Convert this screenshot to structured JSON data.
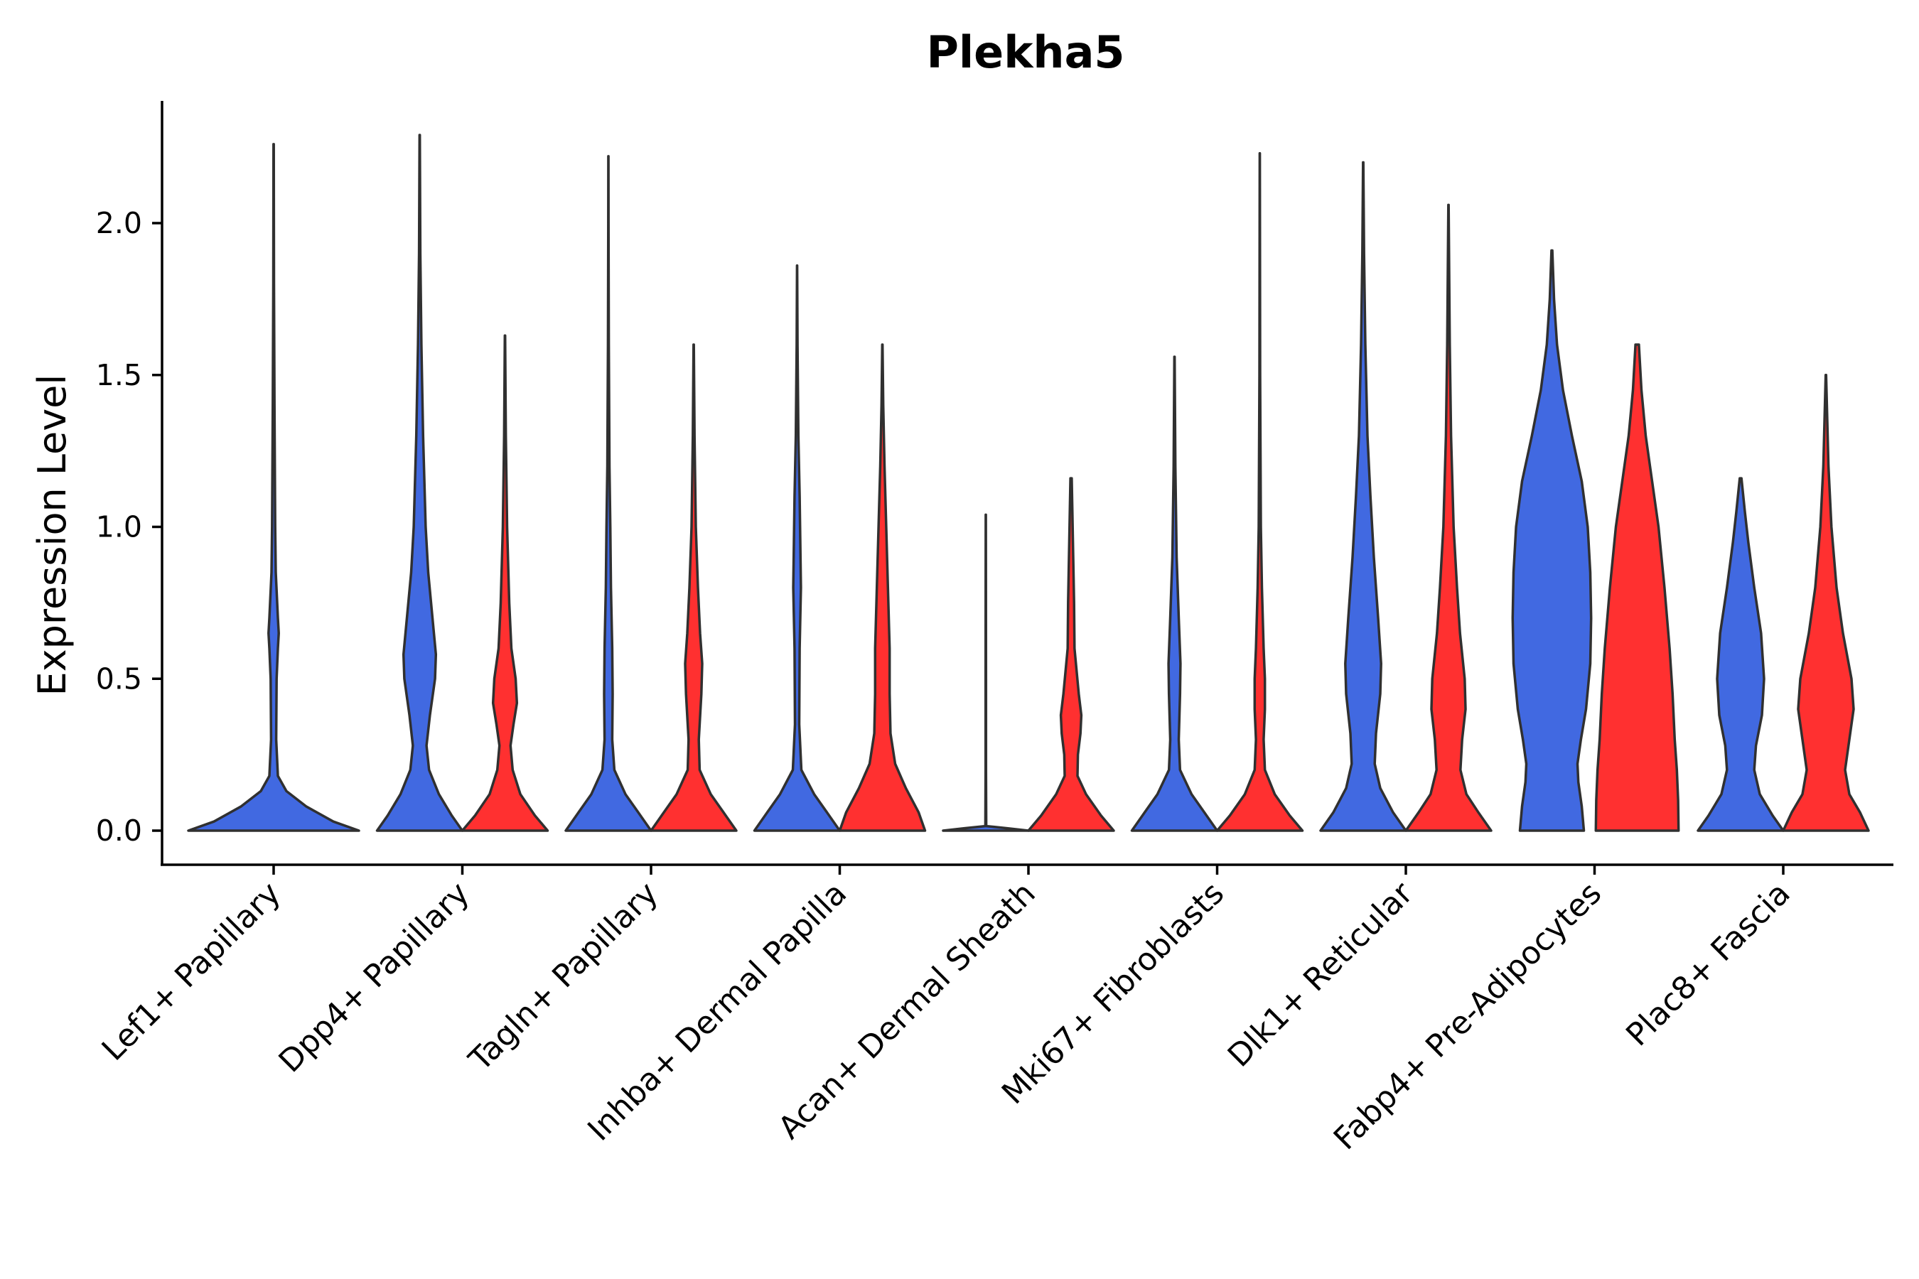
{
  "chart_data": {
    "type": "violin",
    "title": "Plekha5",
    "xlabel": "",
    "ylabel": "Expression Level",
    "ylim": [
      -0.11,
      2.4
    ],
    "yticks": [
      0.0,
      0.5,
      1.0,
      1.5,
      2.0
    ],
    "ytick_labels": [
      "0.0",
      "0.5",
      "1.0",
      "1.5",
      "2.0"
    ],
    "legend": "none",
    "grid": false,
    "groups": [
      {
        "name": "blue",
        "color": "#4169E1"
      },
      {
        "name": "red",
        "color": "#FF3030"
      }
    ],
    "categories": [
      "Lef1+ Papillary",
      "Dpp4+ Papillary",
      "Tagln+ Papillary",
      "Inhba+ Dermal Papilla",
      "Acan+ Dermal Sheath",
      "Mki67+ Fibroblasts",
      "Dlk1+ Reticular",
      "Fabp4+ Pre-Adipocytes",
      "Plac8+ Fascia"
    ],
    "violins": [
      {
        "category": "Lef1+ Papillary",
        "group": "blue",
        "max": 2.26,
        "profile": [
          [
            0,
            1.0
          ],
          [
            0.03,
            0.7
          ],
          [
            0.08,
            0.38
          ],
          [
            0.13,
            0.15
          ],
          [
            0.18,
            0.05
          ],
          [
            0.3,
            0.03
          ],
          [
            0.5,
            0.035
          ],
          [
            0.6,
            0.05
          ],
          [
            0.65,
            0.06
          ],
          [
            0.7,
            0.05
          ],
          [
            0.85,
            0.025
          ],
          [
            1.0,
            0.018
          ],
          [
            1.4,
            0.01
          ],
          [
            1.8,
            0.004
          ],
          [
            2.26,
            0.002
          ]
        ]
      },
      {
        "category": "Dpp4+ Papillary",
        "group": "blue",
        "max": 2.29,
        "profile": [
          [
            0,
            1.0
          ],
          [
            0.05,
            0.75
          ],
          [
            0.12,
            0.45
          ],
          [
            0.2,
            0.22
          ],
          [
            0.28,
            0.16
          ],
          [
            0.38,
            0.24
          ],
          [
            0.5,
            0.36
          ],
          [
            0.58,
            0.38
          ],
          [
            0.7,
            0.3
          ],
          [
            0.85,
            0.2
          ],
          [
            1.0,
            0.14
          ],
          [
            1.3,
            0.08
          ],
          [
            1.6,
            0.04
          ],
          [
            1.9,
            0.015
          ],
          [
            2.29,
            0.004
          ]
        ]
      },
      {
        "category": "Dpp4+ Papillary",
        "group": "red",
        "max": 1.63,
        "profile": [
          [
            0,
            1.0
          ],
          [
            0.05,
            0.7
          ],
          [
            0.12,
            0.36
          ],
          [
            0.2,
            0.18
          ],
          [
            0.28,
            0.13
          ],
          [
            0.35,
            0.2
          ],
          [
            0.42,
            0.28
          ],
          [
            0.5,
            0.25
          ],
          [
            0.6,
            0.15
          ],
          [
            0.75,
            0.1
          ],
          [
            1.0,
            0.05
          ],
          [
            1.3,
            0.02
          ],
          [
            1.63,
            0.003
          ]
        ]
      },
      {
        "category": "Tagln+ Papillary",
        "group": "blue",
        "max": 2.22,
        "profile": [
          [
            0,
            1.0
          ],
          [
            0.06,
            0.7
          ],
          [
            0.12,
            0.4
          ],
          [
            0.2,
            0.14
          ],
          [
            0.3,
            0.09
          ],
          [
            0.45,
            0.1
          ],
          [
            0.6,
            0.09
          ],
          [
            0.8,
            0.06
          ],
          [
            1.0,
            0.045
          ],
          [
            1.2,
            0.025
          ],
          [
            1.6,
            0.01
          ],
          [
            2.0,
            0.004
          ],
          [
            2.22,
            0.002
          ]
        ]
      },
      {
        "category": "Tagln+ Papillary",
        "group": "red",
        "max": 1.6,
        "profile": [
          [
            0,
            1.0
          ],
          [
            0.05,
            0.75
          ],
          [
            0.12,
            0.4
          ],
          [
            0.2,
            0.14
          ],
          [
            0.3,
            0.12
          ],
          [
            0.45,
            0.18
          ],
          [
            0.55,
            0.2
          ],
          [
            0.65,
            0.15
          ],
          [
            0.8,
            0.1
          ],
          [
            1.0,
            0.05
          ],
          [
            1.3,
            0.02
          ],
          [
            1.6,
            0.003
          ]
        ]
      },
      {
        "category": "Inhba+ Dermal Papilla",
        "group": "blue",
        "max": 1.86,
        "profile": [
          [
            0,
            1.0
          ],
          [
            0.06,
            0.7
          ],
          [
            0.12,
            0.4
          ],
          [
            0.2,
            0.1
          ],
          [
            0.35,
            0.05
          ],
          [
            0.6,
            0.06
          ],
          [
            0.8,
            0.09
          ],
          [
            0.9,
            0.08
          ],
          [
            1.1,
            0.06
          ],
          [
            1.3,
            0.03
          ],
          [
            1.6,
            0.01
          ],
          [
            1.86,
            0.002
          ]
        ]
      },
      {
        "category": "Inhba+ Dermal Papilla",
        "group": "red",
        "max": 1.6,
        "profile": [
          [
            0,
            1.0
          ],
          [
            0.06,
            0.85
          ],
          [
            0.14,
            0.55
          ],
          [
            0.22,
            0.3
          ],
          [
            0.32,
            0.19
          ],
          [
            0.45,
            0.17
          ],
          [
            0.6,
            0.17
          ],
          [
            0.8,
            0.13
          ],
          [
            1.0,
            0.09
          ],
          [
            1.2,
            0.05
          ],
          [
            1.4,
            0.02
          ],
          [
            1.6,
            0.003
          ]
        ]
      },
      {
        "category": "Acan+ Dermal Sheath",
        "group": "blue",
        "max": 1.04,
        "profile": [
          [
            0,
            1.0
          ],
          [
            0.008,
            0.5
          ],
          [
            0.015,
            0.01
          ],
          [
            0.2,
            0.005
          ],
          [
            0.5,
            0.005
          ],
          [
            0.8,
            0.004
          ],
          [
            1.04,
            0.002
          ]
        ]
      },
      {
        "category": "Acan+ Dermal Sheath",
        "group": "red",
        "max": 1.16,
        "profile": [
          [
            0,
            1.0
          ],
          [
            0.05,
            0.7
          ],
          [
            0.12,
            0.35
          ],
          [
            0.18,
            0.15
          ],
          [
            0.25,
            0.16
          ],
          [
            0.32,
            0.22
          ],
          [
            0.38,
            0.24
          ],
          [
            0.45,
            0.18
          ],
          [
            0.6,
            0.08
          ],
          [
            0.75,
            0.07
          ],
          [
            0.9,
            0.05
          ],
          [
            1.05,
            0.03
          ],
          [
            1.16,
            0.015
          ]
        ]
      },
      {
        "category": "Mki67+ Fibroblasts",
        "group": "blue",
        "max": 1.56,
        "profile": [
          [
            0,
            1.0
          ],
          [
            0.05,
            0.75
          ],
          [
            0.12,
            0.4
          ],
          [
            0.2,
            0.13
          ],
          [
            0.3,
            0.1
          ],
          [
            0.45,
            0.13
          ],
          [
            0.55,
            0.14
          ],
          [
            0.7,
            0.1
          ],
          [
            0.9,
            0.05
          ],
          [
            1.2,
            0.02
          ],
          [
            1.56,
            0.003
          ]
        ]
      },
      {
        "category": "Mki67+ Fibroblasts",
        "group": "red",
        "max": 2.23,
        "profile": [
          [
            0,
            1.0
          ],
          [
            0.05,
            0.7
          ],
          [
            0.12,
            0.35
          ],
          [
            0.2,
            0.12
          ],
          [
            0.3,
            0.09
          ],
          [
            0.4,
            0.12
          ],
          [
            0.5,
            0.12
          ],
          [
            0.6,
            0.09
          ],
          [
            0.8,
            0.05
          ],
          [
            1.0,
            0.025
          ],
          [
            1.5,
            0.008
          ],
          [
            2.23,
            0.002
          ]
        ]
      },
      {
        "category": "Dlk1+ Reticular",
        "group": "blue",
        "max": 2.2,
        "profile": [
          [
            0,
            1.0
          ],
          [
            0.06,
            0.7
          ],
          [
            0.14,
            0.4
          ],
          [
            0.22,
            0.27
          ],
          [
            0.32,
            0.3
          ],
          [
            0.45,
            0.4
          ],
          [
            0.55,
            0.42
          ],
          [
            0.7,
            0.35
          ],
          [
            0.9,
            0.25
          ],
          [
            1.1,
            0.17
          ],
          [
            1.3,
            0.1
          ],
          [
            1.6,
            0.05
          ],
          [
            1.9,
            0.02
          ],
          [
            2.2,
            0.004
          ]
        ]
      },
      {
        "category": "Dlk1+ Reticular",
        "group": "red",
        "max": 2.06,
        "profile": [
          [
            0,
            1.0
          ],
          [
            0.06,
            0.7
          ],
          [
            0.12,
            0.42
          ],
          [
            0.2,
            0.28
          ],
          [
            0.3,
            0.32
          ],
          [
            0.4,
            0.4
          ],
          [
            0.5,
            0.38
          ],
          [
            0.65,
            0.27
          ],
          [
            0.8,
            0.2
          ],
          [
            1.0,
            0.12
          ],
          [
            1.3,
            0.06
          ],
          [
            1.6,
            0.03
          ],
          [
            2.06,
            0.004
          ]
        ]
      },
      {
        "category": "Fabp4+ Pre-Adipocytes",
        "group": "blue",
        "max": 1.91,
        "profile": [
          [
            0,
            0.75
          ],
          [
            0.08,
            0.7
          ],
          [
            0.16,
            0.62
          ],
          [
            0.22,
            0.6
          ],
          [
            0.3,
            0.68
          ],
          [
            0.4,
            0.8
          ],
          [
            0.55,
            0.9
          ],
          [
            0.7,
            0.92
          ],
          [
            0.85,
            0.9
          ],
          [
            1.0,
            0.84
          ],
          [
            1.15,
            0.7
          ],
          [
            1.3,
            0.47
          ],
          [
            1.45,
            0.26
          ],
          [
            1.6,
            0.12
          ],
          [
            1.75,
            0.05
          ],
          [
            1.91,
            0.01
          ]
        ]
      },
      {
        "category": "Fabp4+ Pre-Adipocytes",
        "group": "red",
        "max": 1.6,
        "profile": [
          [
            0,
            0.97
          ],
          [
            0.1,
            0.96
          ],
          [
            0.2,
            0.93
          ],
          [
            0.3,
            0.88
          ],
          [
            0.45,
            0.83
          ],
          [
            0.6,
            0.76
          ],
          [
            0.8,
            0.64
          ],
          [
            1.0,
            0.5
          ],
          [
            1.15,
            0.35
          ],
          [
            1.3,
            0.2
          ],
          [
            1.45,
            0.1
          ],
          [
            1.6,
            0.04
          ]
        ]
      },
      {
        "category": "Plac8+ Fascia",
        "group": "blue",
        "max": 1.16,
        "profile": [
          [
            0,
            1.0
          ],
          [
            0.05,
            0.75
          ],
          [
            0.12,
            0.45
          ],
          [
            0.2,
            0.32
          ],
          [
            0.28,
            0.36
          ],
          [
            0.38,
            0.5
          ],
          [
            0.5,
            0.55
          ],
          [
            0.65,
            0.48
          ],
          [
            0.8,
            0.32
          ],
          [
            0.95,
            0.18
          ],
          [
            1.05,
            0.1
          ],
          [
            1.16,
            0.02
          ]
        ]
      },
      {
        "category": "Plac8+ Fascia",
        "group": "red",
        "max": 1.5,
        "profile": [
          [
            0,
            1.0
          ],
          [
            0.06,
            0.8
          ],
          [
            0.12,
            0.55
          ],
          [
            0.2,
            0.45
          ],
          [
            0.3,
            0.55
          ],
          [
            0.4,
            0.65
          ],
          [
            0.5,
            0.6
          ],
          [
            0.65,
            0.4
          ],
          [
            0.8,
            0.25
          ],
          [
            1.0,
            0.13
          ],
          [
            1.2,
            0.06
          ],
          [
            1.5,
            0.005
          ]
        ]
      }
    ]
  }
}
